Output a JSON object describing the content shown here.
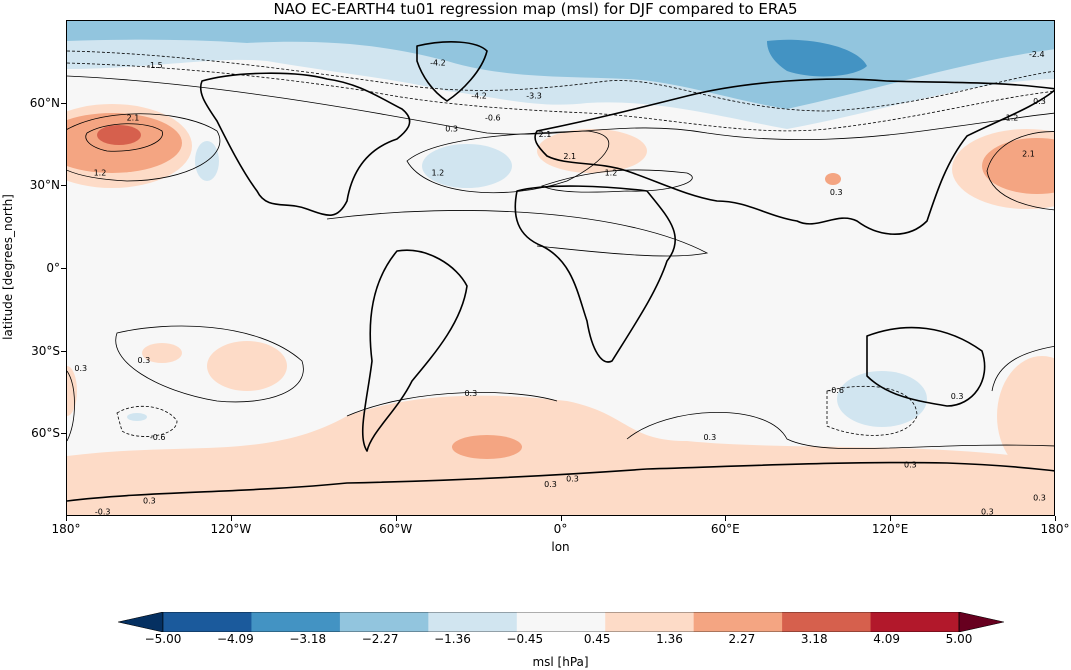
{
  "title": "NAO EC-EARTH4 tu01 regression map (msl) for DJF compared to ERA5",
  "xlabel": "lon",
  "ylabel": "latitude [degrees_north]",
  "lon_ticks": [
    "180°",
    "120°W",
    "60°W",
    "0°",
    "60°E",
    "120°E",
    "180°"
  ],
  "lat_ticks": [
    "60°N",
    "30°N",
    "0°",
    "30°S",
    "60°S"
  ],
  "colorbar": {
    "label": "msl [hPa]",
    "ticks": [
      "−5.00",
      "−4.09",
      "−3.18",
      "−2.27",
      "−1.36",
      "−0.45",
      "0.45",
      "1.36",
      "2.27",
      "3.18",
      "4.09",
      "5.00"
    ],
    "colors": [
      "#053061",
      "#1b5a9c",
      "#4393c3",
      "#92c5de",
      "#d1e5f0",
      "#f7f7f7",
      "#fddbc7",
      "#f4a582",
      "#d6604d",
      "#b2182b",
      "#67001f"
    ]
  },
  "contour_labels": [
    {
      "text": "-1.5",
      "lon": -148,
      "lat": 74
    },
    {
      "text": "-4.2",
      "lon": -45,
      "lat": 75
    },
    {
      "text": "-4.2",
      "lon": -30,
      "lat": 63
    },
    {
      "text": "-3.3",
      "lon": -10,
      "lat": 63
    },
    {
      "text": "-0.6",
      "lon": -25,
      "lat": 55
    },
    {
      "text": "0.3",
      "lon": -40,
      "lat": 51
    },
    {
      "text": "2.1",
      "lon": -156,
      "lat": 55
    },
    {
      "text": "1.2",
      "lon": -168,
      "lat": 35
    },
    {
      "text": "1.2",
      "lon": -45,
      "lat": 35
    },
    {
      "text": "2.1",
      "lon": 3,
      "lat": 41
    },
    {
      "text": "1.2",
      "lon": 18,
      "lat": 35
    },
    {
      "text": "2.1",
      "lon": -6,
      "lat": 49
    },
    {
      "text": "-2.4",
      "lon": 173,
      "lat": 78
    },
    {
      "text": "0.3",
      "lon": 174,
      "lat": 61
    },
    {
      "text": "1.2",
      "lon": 164,
      "lat": 55
    },
    {
      "text": "2.1",
      "lon": 170,
      "lat": 42
    },
    {
      "text": "0.3",
      "lon": 100,
      "lat": 28
    },
    {
      "text": "0.3",
      "lon": -175,
      "lat": -36
    },
    {
      "text": "0.3",
      "lon": -152,
      "lat": -33
    },
    {
      "text": "-0.6",
      "lon": -147,
      "lat": -61
    },
    {
      "text": "0.3",
      "lon": -33,
      "lat": -45
    },
    {
      "text": "-0.6",
      "lon": 100,
      "lat": -44
    },
    {
      "text": "0.3",
      "lon": 144,
      "lat": -46
    },
    {
      "text": "0.3",
      "lon": 54,
      "lat": -61
    },
    {
      "text": "0.3",
      "lon": 127,
      "lat": -71
    },
    {
      "text": "0.3",
      "lon": 4,
      "lat": -76
    },
    {
      "text": "0.3",
      "lon": -4,
      "lat": -78
    },
    {
      "text": "0.3",
      "lon": 155,
      "lat": -88
    },
    {
      "text": "-0.3",
      "lon": -167,
      "lat": -88
    },
    {
      "text": "0.3",
      "lon": 174,
      "lat": -83
    },
    {
      "text": "0.3",
      "lon": -150,
      "lat": -84
    }
  ]
}
